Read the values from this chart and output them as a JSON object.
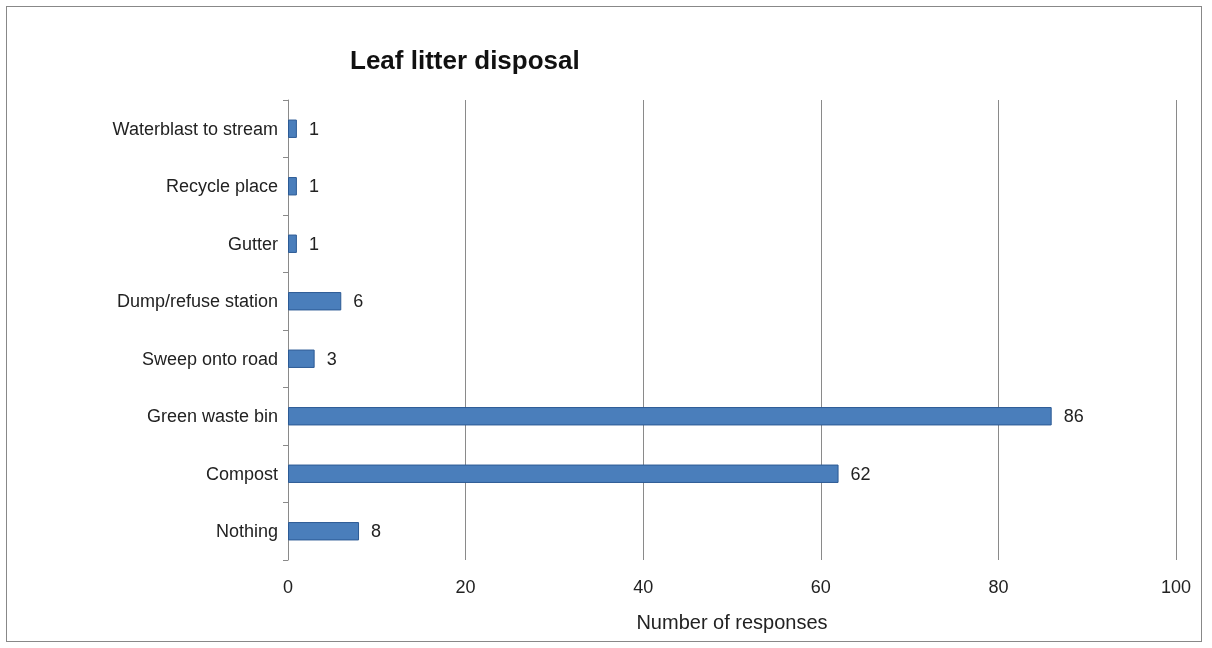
{
  "chart_data": {
    "type": "bar",
    "orientation": "horizontal",
    "title": "Leaf litter disposal",
    "xlabel": "Number of responses",
    "categories": [
      "Waterblast to stream",
      "Recycle place",
      "Gutter",
      "Dump/refuse station",
      "Sweep onto road",
      "Green waste bin",
      "Compost",
      "Nothing"
    ],
    "values": [
      1,
      1,
      1,
      6,
      3,
      86,
      62,
      8
    ],
    "color": "#4a7ebb",
    "xlim": [
      0,
      100
    ],
    "xticks": [
      0,
      20,
      40,
      60,
      80,
      100
    ],
    "grid": "x",
    "data_labels": true
  }
}
